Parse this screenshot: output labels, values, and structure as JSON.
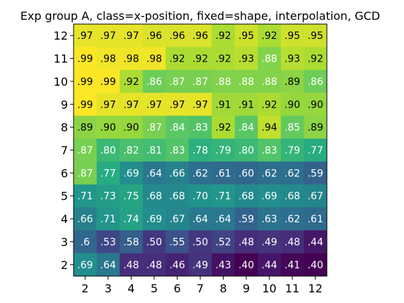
{
  "chart_data": {
    "type": "heatmap",
    "title": "Exp group A, class=x-position, fixed=shape, interpolation, GCD",
    "xlabel": "",
    "ylabel": "",
    "x": [
      2,
      3,
      4,
      5,
      6,
      7,
      8,
      9,
      10,
      11,
      12
    ],
    "y": [
      2,
      3,
      4,
      5,
      6,
      7,
      8,
      9,
      10,
      11,
      12
    ],
    "colormap": "viridis",
    "value_range": [
      0.4,
      0.99
    ],
    "grid": false,
    "rows": [
      {
        "y": 12,
        "values": [
          0.97,
          0.97,
          0.97,
          0.96,
          0.96,
          0.96,
          0.92,
          0.95,
          0.92,
          0.95,
          0.95
        ],
        "labels": [
          ".97",
          ".97",
          ".97",
          ".96",
          ".96",
          ".96",
          ".92",
          ".95",
          ".92",
          ".95",
          ".95"
        ]
      },
      {
        "y": 11,
        "values": [
          0.99,
          0.98,
          0.98,
          0.98,
          0.92,
          0.92,
          0.92,
          0.93,
          0.88,
          0.93,
          0.92
        ],
        "labels": [
          ".99",
          ".98",
          ".98",
          ".98",
          ".92",
          ".92",
          ".92",
          ".93",
          ".88",
          ".93",
          ".92"
        ]
      },
      {
        "y": 10,
        "values": [
          0.99,
          0.99,
          0.92,
          0.86,
          0.87,
          0.87,
          0.88,
          0.88,
          0.88,
          0.89,
          0.86
        ],
        "labels": [
          ".99",
          ".99",
          ".92",
          ".86",
          ".87",
          ".87",
          ".88",
          ".88",
          ".88",
          ".89",
          ".86"
        ]
      },
      {
        "y": 9,
        "values": [
          0.99,
          0.97,
          0.97,
          0.97,
          0.97,
          0.97,
          0.91,
          0.91,
          0.92,
          0.9,
          0.9
        ],
        "labels": [
          ".99",
          ".97",
          ".97",
          ".97",
          ".97",
          ".97",
          ".91",
          ".91",
          ".92",
          ".90",
          ".90"
        ]
      },
      {
        "y": 8,
        "values": [
          0.89,
          0.9,
          0.9,
          0.87,
          0.84,
          0.83,
          0.92,
          0.84,
          0.94,
          0.85,
          0.89
        ],
        "labels": [
          ".89",
          ".90",
          ".90",
          ".87",
          ".84",
          ".83",
          ".92",
          ".84",
          ".94",
          ".85",
          ".89"
        ]
      },
      {
        "y": 7,
        "values": [
          0.87,
          0.8,
          0.82,
          0.81,
          0.83,
          0.78,
          0.79,
          0.8,
          0.83,
          0.79,
          0.77
        ],
        "labels": [
          ".87",
          ".80",
          ".82",
          ".81",
          ".83",
          ".78",
          ".79",
          ".80",
          ".83",
          ".79",
          ".77"
        ]
      },
      {
        "y": 6,
        "values": [
          0.87,
          0.77,
          0.69,
          0.64,
          0.66,
          0.62,
          0.61,
          0.6,
          0.62,
          0.62,
          0.59
        ],
        "labels": [
          ".87",
          ".77",
          ".69",
          ".64",
          ".66",
          ".62",
          ".61",
          ".60",
          ".62",
          ".62",
          ".59"
        ]
      },
      {
        "y": 5,
        "values": [
          0.71,
          0.73,
          0.75,
          0.68,
          0.68,
          0.7,
          0.71,
          0.68,
          0.69,
          0.68,
          0.67
        ],
        "labels": [
          ".71",
          ".73",
          ".75",
          ".68",
          ".68",
          ".70",
          ".71",
          ".68",
          ".69",
          ".68",
          ".67"
        ]
      },
      {
        "y": 4,
        "values": [
          0.66,
          0.71,
          0.74,
          0.69,
          0.67,
          0.64,
          0.64,
          0.59,
          0.63,
          0.62,
          0.61
        ],
        "labels": [
          ".66",
          ".71",
          ".74",
          ".69",
          ".67",
          ".64",
          ".64",
          ".59",
          ".63",
          ".62",
          ".61"
        ]
      },
      {
        "y": 3,
        "values": [
          0.6,
          0.53,
          0.58,
          0.5,
          0.55,
          0.5,
          0.52,
          0.48,
          0.49,
          0.48,
          0.44
        ],
        "labels": [
          ".6",
          ".53",
          ".58",
          ".50",
          ".55",
          ".50",
          ".52",
          ".48",
          ".49",
          ".48",
          ".44"
        ]
      },
      {
        "y": 2,
        "values": [
          0.69,
          0.64,
          0.48,
          0.48,
          0.46,
          0.49,
          0.43,
          0.4,
          0.44,
          0.41,
          0.4
        ],
        "labels": [
          ".69",
          ".64",
          ".48",
          ".48",
          ".46",
          ".49",
          ".43",
          ".40",
          ".44",
          ".41",
          ".40"
        ]
      }
    ]
  }
}
